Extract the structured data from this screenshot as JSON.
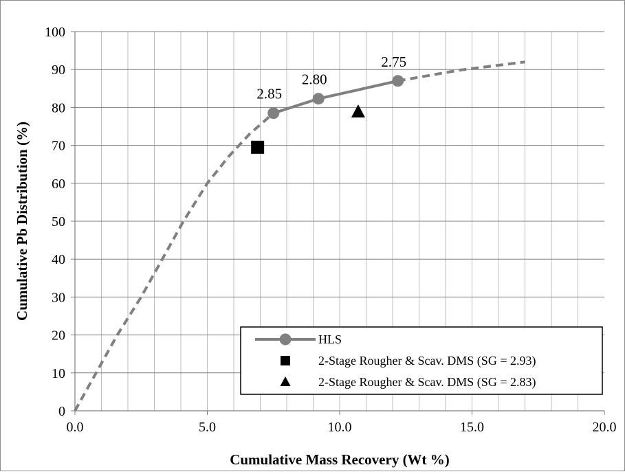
{
  "chart_data": {
    "type": "line",
    "xlabel": "Cumulative Mass Recovery (Wt %)",
    "ylabel": "Cumulative Pb Distribution (%)",
    "xlim": [
      0,
      20
    ],
    "ylim": [
      0,
      100
    ],
    "x_ticks": [
      "0.0",
      "5.0",
      "10.0",
      "15.0",
      "20.0"
    ],
    "y_ticks": [
      "0",
      "10",
      "20",
      "30",
      "40",
      "50",
      "60",
      "70",
      "80",
      "90",
      "100"
    ],
    "grid": true,
    "legend_position": "bottom-right",
    "series": [
      {
        "name": "HLS",
        "style": "solid-with-markers",
        "marker": "circle",
        "color": "#808080",
        "points": [
          {
            "x": 7.5,
            "y": 78.5,
            "label": "2.85"
          },
          {
            "x": 9.2,
            "y": 82.3,
            "label": "2.80"
          },
          {
            "x": 12.2,
            "y": 87.0,
            "label": "2.75"
          }
        ]
      },
      {
        "style": "dashed",
        "color": "#808080",
        "points": [
          {
            "x": 0.0,
            "y": 0.0
          },
          {
            "x": 0.8,
            "y": 10.0
          },
          {
            "x": 1.6,
            "y": 20.0
          },
          {
            "x": 2.5,
            "y": 30.0
          },
          {
            "x": 3.3,
            "y": 40.0
          },
          {
            "x": 4.1,
            "y": 50.0
          },
          {
            "x": 5.0,
            "y": 60.0
          },
          {
            "x": 5.8,
            "y": 67.0
          },
          {
            "x": 6.6,
            "y": 73.0
          },
          {
            "x": 7.5,
            "y": 78.5
          }
        ]
      },
      {
        "style": "dashed",
        "color": "#808080",
        "points": [
          {
            "x": 12.2,
            "y": 87.0
          },
          {
            "x": 14.5,
            "y": 89.8
          },
          {
            "x": 17.0,
            "y": 92.0
          }
        ]
      },
      {
        "name": "2-Stage Rougher & Scav. DMS (SG = 2.93)",
        "style": "marker-only",
        "marker": "square",
        "color": "#000000",
        "points": [
          {
            "x": 6.9,
            "y": 69.5
          }
        ]
      },
      {
        "name": "2-Stage Rougher & Scav. DMS (SG = 2.83)",
        "style": "marker-only",
        "marker": "triangle",
        "color": "#000000",
        "points": [
          {
            "x": 10.7,
            "y": 78.8
          }
        ]
      }
    ]
  }
}
